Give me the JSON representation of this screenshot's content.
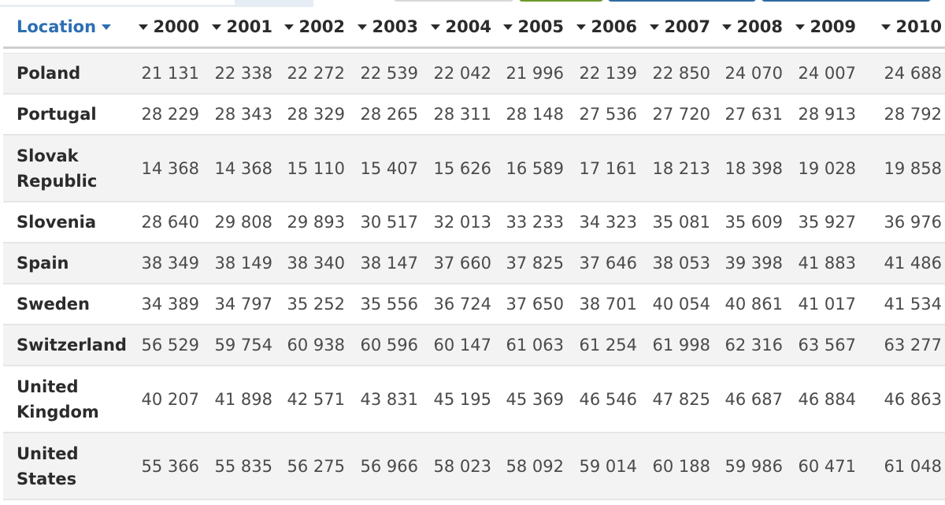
{
  "table": {
    "location_header": "Location",
    "years": [
      "2000",
      "2001",
      "2002",
      "2003",
      "2004",
      "2005",
      "2006",
      "2007",
      "2008",
      "2009",
      "2010"
    ],
    "rows": [
      {
        "country": "Poland",
        "values": [
          "21 131",
          "22 338",
          "22 272",
          "22 539",
          "22 042",
          "21 996",
          "22 139",
          "22 850",
          "24 070",
          "24 007",
          "24 688"
        ]
      },
      {
        "country": "Portugal",
        "values": [
          "28 229",
          "28 343",
          "28 329",
          "28 265",
          "28 311",
          "28 148",
          "27 536",
          "27 720",
          "27 631",
          "28 913",
          "28 792"
        ]
      },
      {
        "country": "Slovak Republic",
        "values": [
          "14 368",
          "14 368",
          "15 110",
          "15 407",
          "15 626",
          "16 589",
          "17 161",
          "18 213",
          "18 398",
          "19 028",
          "19 858"
        ]
      },
      {
        "country": "Slovenia",
        "values": [
          "28 640",
          "29 808",
          "29 893",
          "30 517",
          "32 013",
          "33 233",
          "34 323",
          "35 081",
          "35 609",
          "35 927",
          "36 976"
        ]
      },
      {
        "country": "Spain",
        "values": [
          "38 349",
          "38 149",
          "38 340",
          "38 147",
          "37 660",
          "37 825",
          "37 646",
          "38 053",
          "39 398",
          "41 883",
          "41 486"
        ]
      },
      {
        "country": "Sweden",
        "values": [
          "34 389",
          "34 797",
          "35 252",
          "35 556",
          "36 724",
          "37 650",
          "38 701",
          "40 054",
          "40 861",
          "41 017",
          "41 534"
        ]
      },
      {
        "country": "Switzerland",
        "values": [
          "56 529",
          "59 754",
          "60 938",
          "60 596",
          "60 147",
          "61 063",
          "61 254",
          "61 998",
          "62 316",
          "63 567",
          "63 277"
        ]
      },
      {
        "country": "United Kingdom",
        "values": [
          "40 207",
          "41 898",
          "42 571",
          "43 831",
          "45 195",
          "45 369",
          "46 546",
          "47 825",
          "46 687",
          "46 884",
          "46 863"
        ]
      },
      {
        "country": "United States",
        "values": [
          "55 366",
          "55 835",
          "56 275",
          "56 966",
          "58 023",
          "58 092",
          "59 014",
          "60 188",
          "59 986",
          "60 471",
          "61 048"
        ]
      }
    ]
  },
  "colors": {
    "header_link": "#2c6fb2",
    "row_shade": "#f3f3f3",
    "text": "#4a4a4a"
  },
  "icons": {
    "sort": "caret-down-icon"
  }
}
